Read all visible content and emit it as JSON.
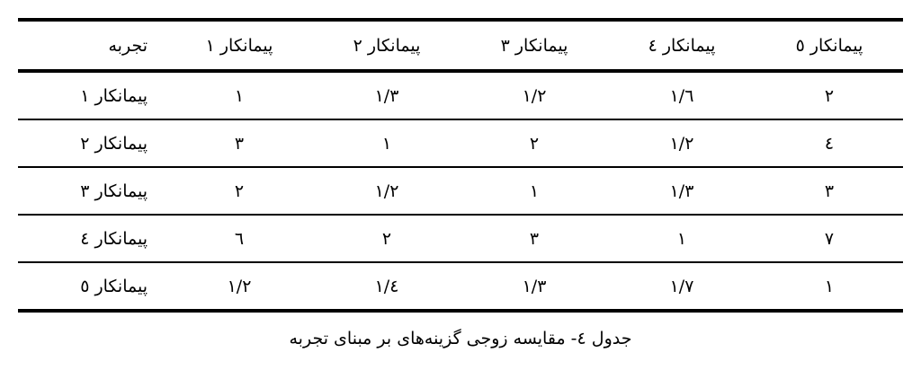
{
  "table": {
    "headers": [
      "تجربه",
      "پیمانکار ١",
      "پیمانکار ٢",
      "پیمانکار ٣",
      "پیمانکار ٤",
      "پیمانکار ٥"
    ],
    "rows": [
      {
        "label": "پیمانکار ١",
        "values": [
          "١",
          "١/٣",
          "١/٢",
          "١/٦",
          "٢"
        ]
      },
      {
        "label": "پیمانکار ٢",
        "values": [
          "٣",
          "١",
          "٢",
          "١/٢",
          "٤"
        ]
      },
      {
        "label": "پیمانکار ٣",
        "values": [
          "٢",
          "١/٢",
          "١",
          "١/٣",
          "٣"
        ]
      },
      {
        "label": "پیمانکار ٤",
        "values": [
          "٦",
          "٢",
          "٣",
          "١",
          "٧"
        ]
      },
      {
        "label": "پیمانکار ٥",
        "values": [
          "١/٢",
          "١/٤",
          "١/٣",
          "١/٧",
          "١"
        ]
      }
    ]
  },
  "caption": "جدول ٤- مقایسه زوجی گزینه‌های بر مبنای تجربه"
}
